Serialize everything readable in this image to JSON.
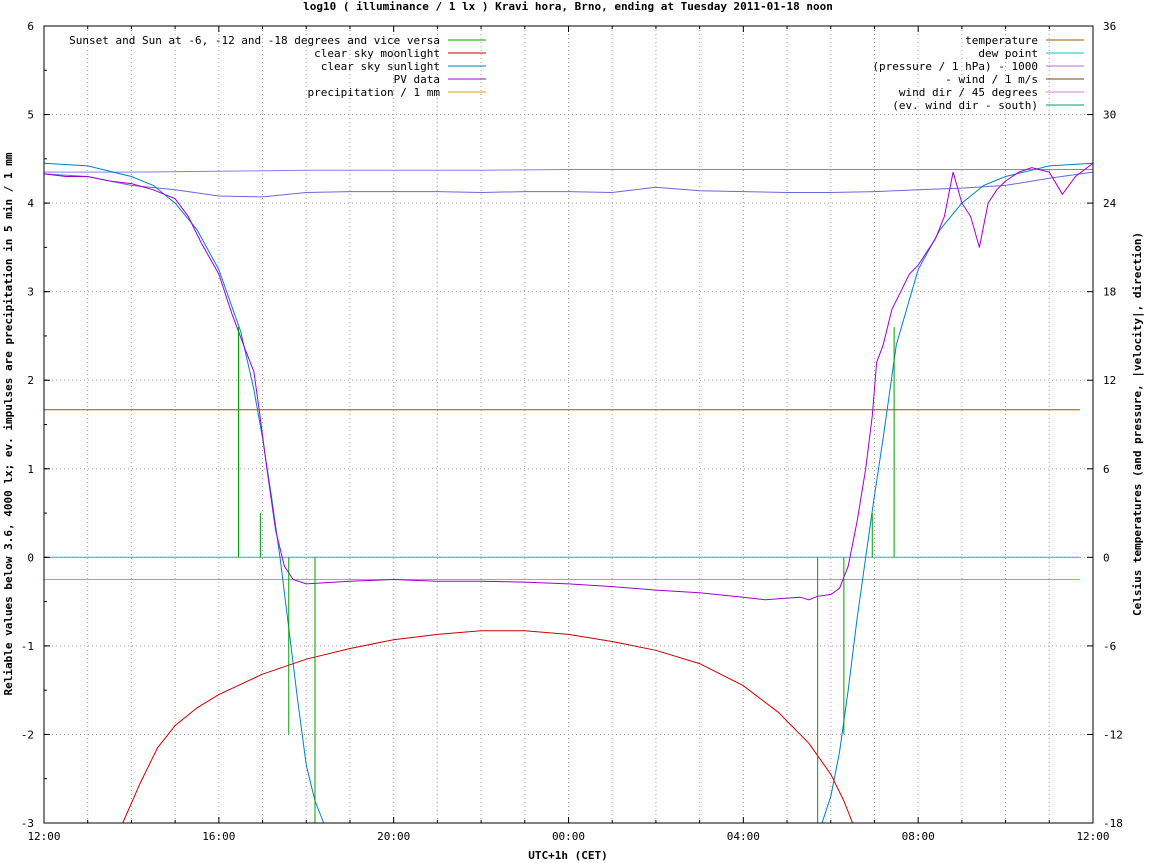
{
  "chart_data": {
    "type": "line",
    "title": "log10 ( illuminance / 1 lx ) Kravi hora, Brno, ending at Tuesday 2011-01-18 noon",
    "xlabel": "UTC+1h (CET)",
    "ylabel": "Reliable values below 3.6, 4000 lx; ev. impulses are precipitation in 5 min / 1 mm",
    "y2label": "Celsius temperatures (and pressure, |velocity|, direction)",
    "xlim": [
      0,
      24
    ],
    "ylim": [
      -3,
      6
    ],
    "y2lim": [
      -18,
      36
    ],
    "xticks": [
      {
        "h": 0,
        "label": "12:00"
      },
      {
        "h": 4,
        "label": "16:00"
      },
      {
        "h": 8,
        "label": "20:00"
      },
      {
        "h": 12,
        "label": "00:00"
      },
      {
        "h": 16,
        "label": "04:00"
      },
      {
        "h": 20,
        "label": "08:00"
      },
      {
        "h": 24,
        "label": "12:00"
      }
    ],
    "yticks": [
      {
        "v": -3,
        "label": "-3"
      },
      {
        "v": -2,
        "label": "-2"
      },
      {
        "v": -1,
        "label": "-1"
      },
      {
        "v": 0,
        "label": "0"
      },
      {
        "v": 1,
        "label": "1"
      },
      {
        "v": 2,
        "label": "2"
      },
      {
        "v": 3,
        "label": "3"
      },
      {
        "v": 4,
        "label": "4"
      },
      {
        "v": 5,
        "label": "5"
      },
      {
        "v": 6,
        "label": "6"
      }
    ],
    "y2ticks": [
      {
        "v": -18,
        "label": "-18"
      },
      {
        "v": -12,
        "label": "-12"
      },
      {
        "v": -6,
        "label": "-6"
      },
      {
        "v": 0,
        "label": "0"
      },
      {
        "v": 6,
        "label": "6"
      },
      {
        "v": 12,
        "label": "12"
      },
      {
        "v": 18,
        "label": "18"
      },
      {
        "v": 24,
        "label": "24"
      },
      {
        "v": 30,
        "label": "30"
      },
      {
        "v": 36,
        "label": "36"
      }
    ],
    "legend_left": [
      {
        "label": "Sunset and Sun at -6, -12 and -18 degrees and vice versa",
        "color": "#00a000"
      },
      {
        "label": "clear sky moonlight",
        "color": "#cc0000"
      },
      {
        "label": "clear sky sunlight",
        "color": "#0080c0"
      },
      {
        "label": "PV data",
        "color": "#a000d0"
      },
      {
        "label": "precipitation / 1 mm",
        "color": "#e0a000"
      }
    ],
    "legend_right": [
      {
        "label": "temperature",
        "color": "#a05000"
      },
      {
        "label": "dew point",
        "color": "#00c8c8"
      },
      {
        "label": "(pressure / 1 hPa) - 1000",
        "color": "#b070c0"
      },
      {
        "label": "- wind / 1 m/s",
        "color": "#804000"
      },
      {
        "label": "wind dir / 45 degrees",
        "color": "#d080e0"
      },
      {
        "label": "(ev. wind dir - south)",
        "color": "#00a060"
      }
    ],
    "sun_event_impulses": [
      {
        "h": 4.45,
        "top": 2.6
      },
      {
        "h": 4.95,
        "top": 0.5
      },
      {
        "h": 5.6,
        "top": -2.0
      },
      {
        "h": 6.2,
        "top": -3.0
      },
      {
        "h": 17.7,
        "top": -3.0
      },
      {
        "h": 18.3,
        "top": -2.0
      },
      {
        "h": 18.95,
        "top": 0.5
      },
      {
        "h": 19.45,
        "top": 2.6
      }
    ],
    "series": [
      {
        "name": "temperature",
        "color": "#a05000",
        "axis": "y2",
        "x": [
          0,
          23.7
        ],
        "y": [
          10,
          10
        ]
      },
      {
        "name": "dew point",
        "color": "#00c8c8",
        "axis": "y2",
        "x": [
          0,
          23.7
        ],
        "y": [
          0,
          0
        ]
      },
      {
        "name": "- wind / 1 m/s",
        "color": "#d080e0",
        "axis": "y2",
        "x": [
          0,
          23.7
        ],
        "y": [
          -1.5,
          -1.5
        ]
      },
      {
        "name": "(pressure / 1 hPa) - 1000",
        "color": "#6868e0",
        "axis": "y",
        "x": [
          0,
          1,
          2,
          3,
          4,
          5,
          6,
          7,
          8,
          9,
          10,
          11,
          12,
          13,
          14,
          15,
          16,
          17,
          18,
          19,
          20,
          21,
          22,
          23,
          24
        ],
        "y": [
          4.33,
          4.3,
          4.2,
          4.15,
          4.08,
          4.07,
          4.12,
          4.13,
          4.13,
          4.13,
          4.12,
          4.13,
          4.13,
          4.12,
          4.18,
          4.14,
          4.13,
          4.12,
          4.12,
          4.13,
          4.15,
          4.17,
          4.2,
          4.28,
          4.35
        ]
      },
      {
        "name": "wind dir / 45 degrees",
        "color": "#8080ff",
        "axis": "y",
        "x": [
          0,
          2,
          4,
          6,
          8,
          10,
          12,
          14,
          16,
          18,
          20,
          22,
          24
        ],
        "y": [
          4.35,
          4.35,
          4.36,
          4.37,
          4.37,
          4.37,
          4.38,
          4.38,
          4.38,
          4.38,
          4.38,
          4.38,
          4.38
        ]
      },
      {
        "name": "clear sky sunlight",
        "color": "#0080c0",
        "axis": "y",
        "x": [
          0,
          1,
          2,
          2.5,
          3,
          3.5,
          4,
          4.5,
          4.8,
          5.0,
          5.2,
          5.4,
          5.6,
          5.8,
          6.0,
          6.2,
          6.4,
          17.8,
          18.0,
          18.2,
          18.4,
          18.6,
          18.8,
          19.0,
          19.2,
          19.5,
          20,
          20.5,
          21,
          21.5,
          22,
          23,
          24
        ],
        "y": [
          4.45,
          4.42,
          4.3,
          4.2,
          4.0,
          3.7,
          3.25,
          2.55,
          1.9,
          1.35,
          0.7,
          0.0,
          -0.8,
          -1.6,
          -2.35,
          -2.75,
          -3.0,
          -3.0,
          -2.7,
          -2.2,
          -1.5,
          -0.7,
          0.0,
          0.7,
          1.35,
          2.4,
          3.25,
          3.7,
          4.0,
          4.2,
          4.3,
          4.42,
          4.45
        ]
      },
      {
        "name": "clear sky moonlight",
        "color": "#cc0000",
        "axis": "y",
        "x": [
          1.8,
          2.2,
          2.6,
          3.0,
          3.5,
          4.0,
          5,
          6,
          7,
          8,
          9,
          10,
          11,
          12,
          13,
          14,
          15,
          16,
          16.8,
          17.5,
          18.0,
          18.3,
          18.5
        ],
        "y": [
          -3.0,
          -2.55,
          -2.15,
          -1.9,
          -1.7,
          -1.55,
          -1.32,
          -1.15,
          -1.03,
          -0.93,
          -0.87,
          -0.83,
          -0.83,
          -0.87,
          -0.95,
          -1.05,
          -1.2,
          -1.45,
          -1.75,
          -2.1,
          -2.45,
          -2.75,
          -3.0
        ]
      },
      {
        "name": "PV data",
        "color": "#a000d0",
        "axis": "y",
        "x": [
          0,
          0.5,
          1.0,
          1.5,
          2.0,
          2.5,
          3.0,
          3.3,
          3.6,
          4.0,
          4.3,
          4.6,
          4.8,
          4.9,
          5.1,
          5.3,
          5.5,
          5.7,
          6,
          7,
          8,
          9,
          10,
          11,
          12,
          13,
          14,
          15,
          16,
          16.5,
          17,
          17.3,
          17.5,
          17.7,
          18.0,
          18.2,
          18.4,
          18.6,
          18.8,
          18.95,
          19.05,
          19.2,
          19.4,
          19.6,
          19.8,
          20.0,
          20.2,
          20.4,
          20.6,
          20.8,
          21.0,
          21.2,
          21.4,
          21.6,
          21.8,
          22.0,
          22.3,
          22.6,
          23.0,
          23.3,
          23.6,
          24.0
        ],
        "y": [
          4.33,
          4.3,
          4.3,
          4.25,
          4.22,
          4.15,
          4.05,
          3.85,
          3.55,
          3.2,
          2.75,
          2.35,
          2.1,
          1.75,
          1.0,
          0.3,
          -0.1,
          -0.25,
          -0.3,
          -0.27,
          -0.25,
          -0.27,
          -0.27,
          -0.28,
          -0.3,
          -0.33,
          -0.37,
          -0.4,
          -0.45,
          -0.48,
          -0.46,
          -0.45,
          -0.48,
          -0.44,
          -0.42,
          -0.35,
          -0.1,
          0.4,
          1.0,
          1.6,
          2.2,
          2.4,
          2.8,
          3.0,
          3.2,
          3.3,
          3.45,
          3.6,
          3.85,
          4.35,
          4.0,
          3.85,
          3.5,
          4.0,
          4.15,
          4.25,
          4.35,
          4.4,
          4.35,
          4.1,
          4.3,
          4.45
        ]
      }
    ]
  }
}
